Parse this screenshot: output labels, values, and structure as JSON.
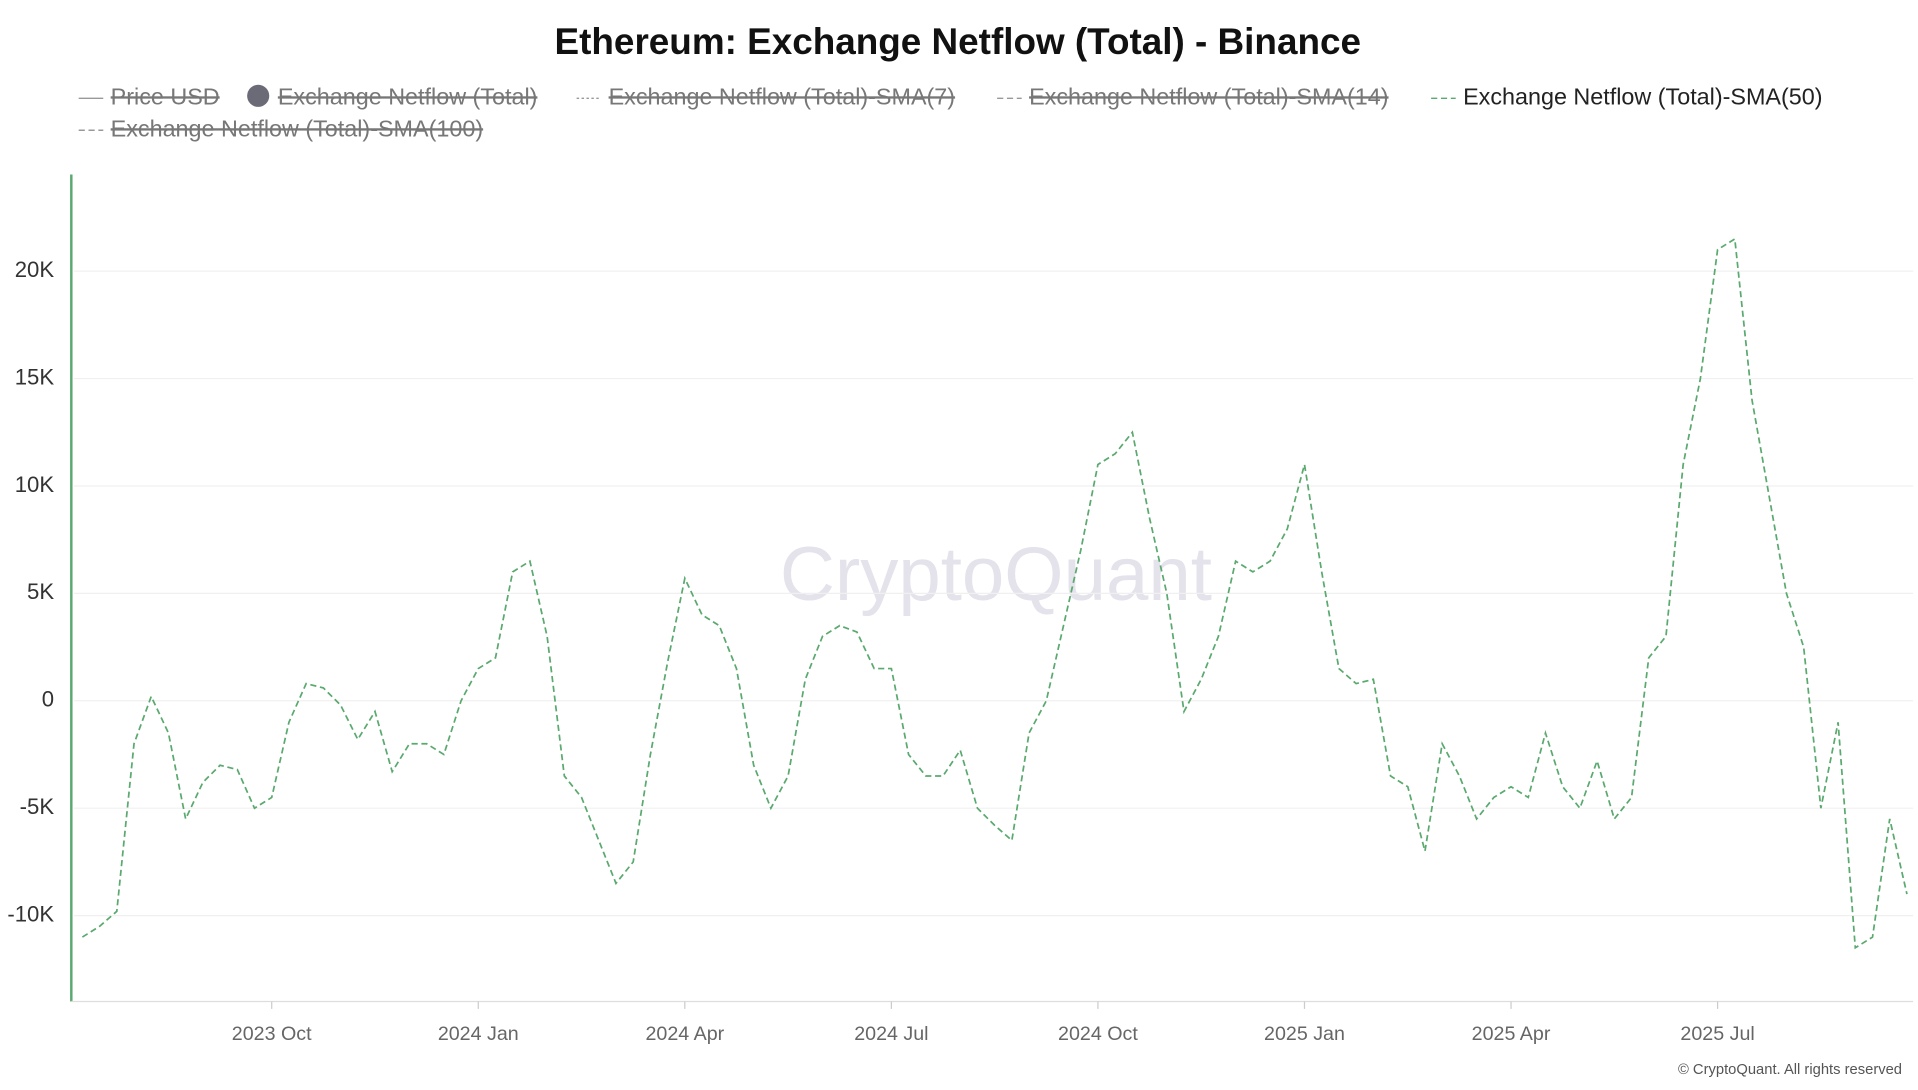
{
  "chart_data": {
    "type": "line",
    "title": "Ethereum: Exchange Netflow (Total) - Binance",
    "legend_items": [
      {
        "name": "Price USD",
        "style": "line",
        "hidden": true
      },
      {
        "name": "Exchange Netflow (Total)",
        "style": "dot",
        "hidden": true
      },
      {
        "name": "Exchange Netflow (Total)-SMA(7)",
        "style": "dotted",
        "hidden": true
      },
      {
        "name": "Exchange Netflow (Total)-SMA(14)",
        "style": "dashed",
        "hidden": true
      },
      {
        "name": "Exchange Netflow (Total)-SMA(50)",
        "style": "dashed",
        "hidden": false
      },
      {
        "name": "Exchange Netflow (Total)-SMA(100)",
        "style": "dashed",
        "hidden": true
      }
    ],
    "categories": [
      null,
      null,
      null,
      null,
      null,
      null,
      null,
      null,
      null,
      null,
      null,
      "2023 Oct",
      null,
      null,
      null,
      null,
      null,
      null,
      null,
      null,
      null,
      null,
      null,
      "2024 Jan",
      null,
      null,
      null,
      null,
      null,
      null,
      null,
      null,
      null,
      null,
      null,
      "2024 Apr",
      null,
      null,
      null,
      null,
      null,
      null,
      null,
      null,
      null,
      null,
      null,
      "2024 Jul",
      null,
      null,
      null,
      null,
      null,
      null,
      null,
      null,
      null,
      null,
      null,
      "2024 Oct",
      null,
      null,
      null,
      null,
      null,
      null,
      null,
      null,
      null,
      null,
      null,
      "2025 Jan",
      null,
      null,
      null,
      null,
      null,
      null,
      null,
      null,
      null,
      null,
      null,
      "2025 Apr",
      null,
      null,
      null,
      null,
      null,
      null,
      null,
      null,
      null,
      null,
      null,
      "2025 Jul",
      null,
      null,
      null,
      null,
      null,
      null,
      null,
      null,
      null,
      null,
      null
    ],
    "series": [
      {
        "name": "Exchange Netflow (Total)-SMA(50)",
        "color": "#5aa96e",
        "values": [
          -11000,
          -10500,
          -9800,
          -2000,
          200,
          -1500,
          -5500,
          -3800,
          -3000,
          -3200,
          -5000,
          -4500,
          -1000,
          800,
          600,
          -200,
          -1800,
          -500,
          -3300,
          -2000,
          -2000,
          -2500,
          0,
          1500,
          2000,
          6000,
          6500,
          3000,
          -3500,
          -4500,
          -6500,
          -8500,
          -7500,
          -2500,
          1800,
          5700,
          4000,
          3500,
          1500,
          -3000,
          -5000,
          -3500,
          1000,
          3000,
          3500,
          3200,
          1500,
          1500,
          -2500,
          -3500,
          -3500,
          -2300,
          -5000,
          -5800,
          -6500,
          -1500,
          0,
          3500,
          7000,
          11000,
          11500,
          12500,
          8500,
          5000,
          -500,
          1000,
          3000,
          6500,
          6000,
          6500,
          8000,
          11000,
          6000,
          1500,
          800,
          1000,
          -3500,
          -4000,
          -7000,
          -2000,
          -3500,
          -5500,
          -4500,
          -4000,
          -4500,
          -1500,
          -4000,
          -5000,
          -2800,
          -5500,
          -4500,
          2000,
          3000,
          11000,
          15000,
          21000,
          21500,
          14000,
          9500,
          5000,
          2500,
          -5000,
          -1000,
          -11500,
          -11000,
          -5500,
          -9000
        ]
      }
    ],
    "ylim": [
      -14000,
      24500
    ],
    "yticks": [
      {
        "value": -10000,
        "label": "-10K"
      },
      {
        "value": -5000,
        "label": "-5K"
      },
      0,
      {
        "value": 5000,
        "label": "5K"
      },
      {
        "value": 10000,
        "label": "10K"
      },
      {
        "value": 15000,
        "label": "15K"
      },
      {
        "value": 20000,
        "label": "20K"
      }
    ],
    "grid": true,
    "watermark": "CryptoQuant",
    "footer": "© CryptoQuant. All rights reserved"
  }
}
